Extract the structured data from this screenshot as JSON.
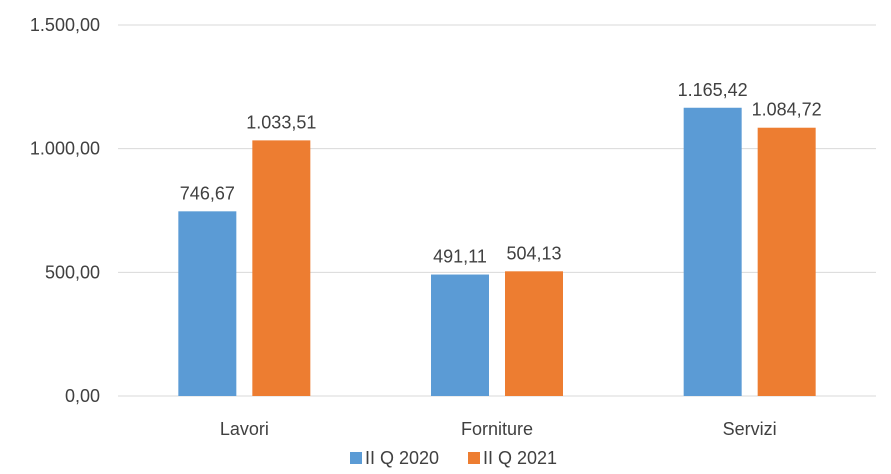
{
  "chart_data": {
    "type": "bar",
    "categories": [
      "Lavori",
      "Forniture",
      "Servizi"
    ],
    "series": [
      {
        "name": "II Q 2020",
        "values": [
          746.67,
          491.11,
          1165.42
        ],
        "labels": [
          "746,67",
          "491,11",
          "1.165,42"
        ],
        "color": "#5B9BD5"
      },
      {
        "name": "II Q 2021",
        "values": [
          1033.51,
          504.13,
          1084.72
        ],
        "labels": [
          "1.033,51",
          "504,13",
          "1.084,72"
        ],
        "color": "#ED7D31"
      }
    ],
    "ylim": [
      0,
      1500
    ],
    "yticks": [
      0,
      500,
      1000,
      1500
    ],
    "ytick_labels": [
      "0,00",
      "500,00",
      "1.000,00",
      "1.500,00"
    ],
    "grid": true,
    "legend_position": "bottom"
  }
}
